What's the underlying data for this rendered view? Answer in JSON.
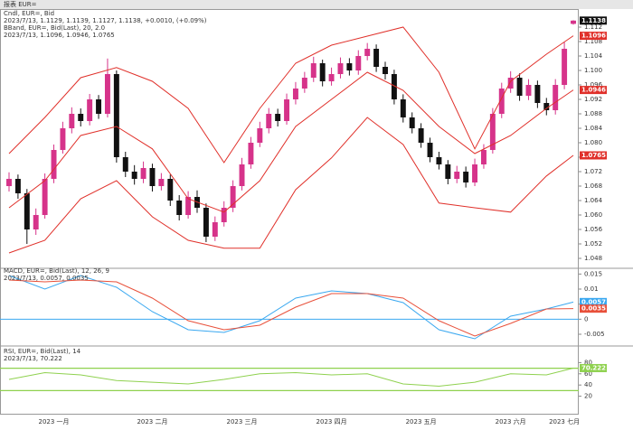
{
  "header": {
    "title": "报表 EUR="
  },
  "chart_data": [
    {
      "type": "candlestick",
      "legend": [
        {
          "text": "Cndl, EUR=, Bid",
          "color": "#222222"
        },
        {
          "text": "2023/7/13, 1.1129, 1.1139, 1.1127, 1.1138, +0.0010, (+0.09%)",
          "color": "#222222"
        },
        {
          "text": "BBand, EUR=, Bid(Last), 20, 2.0",
          "color": "#e0302a"
        },
        {
          "text": "2023/7/13, 1.1096, 1.0946, 1.0765",
          "color": "#e0302a"
        }
      ],
      "up_color": "#d6338a",
      "down_color": "#111111",
      "ohlc": [
        [
          1.068,
          1.0718,
          1.0665,
          1.07
        ],
        [
          1.07,
          1.0712,
          1.0645,
          1.066
        ],
        [
          1.066,
          1.0672,
          1.052,
          1.056
        ],
        [
          1.056,
          1.0618,
          1.0545,
          1.06
        ],
        [
          1.06,
          1.0715,
          1.059,
          1.07
        ],
        [
          1.07,
          1.0795,
          1.0688,
          1.078
        ],
        [
          1.078,
          1.0858,
          1.077,
          1.084
        ],
        [
          1.084,
          1.0898,
          1.0826,
          1.088
        ],
        [
          1.088,
          1.0895,
          1.0845,
          1.086
        ],
        [
          1.086,
          1.0935,
          1.0848,
          1.092
        ],
        [
          1.092,
          1.0932,
          1.0866,
          1.088
        ],
        [
          1.088,
          1.1033,
          1.087,
          1.099
        ],
        [
          1.099,
          1.1,
          1.0745,
          1.076
        ],
        [
          1.076,
          1.0775,
          1.0705,
          1.072
        ],
        [
          1.072,
          1.0738,
          1.0684,
          1.07
        ],
        [
          1.07,
          1.0748,
          1.0688,
          1.073
        ],
        [
          1.073,
          1.0742,
          1.0665,
          1.068
        ],
        [
          1.068,
          1.0716,
          1.0668,
          1.07
        ],
        [
          1.07,
          1.0712,
          1.0625,
          1.064
        ],
        [
          1.064,
          1.0655,
          1.0585,
          1.06
        ],
        [
          1.06,
          1.0666,
          1.059,
          1.065
        ],
        [
          1.065,
          1.0668,
          1.0606,
          1.062
        ],
        [
          1.062,
          1.0632,
          1.0525,
          1.054
        ],
        [
          1.054,
          1.0596,
          1.0528,
          1.058
        ],
        [
          1.058,
          1.0638,
          1.0568,
          1.062
        ],
        [
          1.062,
          1.0696,
          1.0608,
          1.068
        ],
        [
          1.068,
          1.0758,
          1.0668,
          1.074
        ],
        [
          1.074,
          1.0816,
          1.0728,
          1.08
        ],
        [
          1.08,
          1.0858,
          1.0788,
          1.084
        ],
        [
          1.084,
          1.0896,
          1.0826,
          1.088
        ],
        [
          1.088,
          1.0894,
          1.0845,
          1.086
        ],
        [
          1.086,
          1.0936,
          1.085,
          1.092
        ],
        [
          1.092,
          1.0968,
          1.0906,
          1.095
        ],
        [
          1.095,
          1.0996,
          1.0938,
          1.098
        ],
        [
          1.098,
          1.1038,
          1.0968,
          1.102
        ],
        [
          1.102,
          1.103,
          1.0956,
          1.097
        ],
        [
          1.097,
          1.1008,
          1.0958,
          1.099
        ],
        [
          1.099,
          1.1036,
          1.0978,
          1.102
        ],
        [
          1.102,
          1.1034,
          1.0986,
          1.1
        ],
        [
          1.1,
          1.1056,
          1.0988,
          1.104
        ],
        [
          1.104,
          1.1076,
          1.1028,
          1.106
        ],
        [
          1.106,
          1.1072,
          1.0996,
          1.101
        ],
        [
          1.101,
          1.1024,
          1.0975,
          1.099
        ],
        [
          1.099,
          1.1002,
          1.0906,
          1.092
        ],
        [
          1.092,
          1.0934,
          1.0856,
          1.087
        ],
        [
          1.087,
          1.0884,
          1.0826,
          1.084
        ],
        [
          1.084,
          1.0854,
          1.0786,
          1.08
        ],
        [
          1.08,
          1.0814,
          1.0746,
          1.076
        ],
        [
          1.076,
          1.0775,
          1.0726,
          1.074
        ],
        [
          1.074,
          1.0752,
          1.0685,
          1.07
        ],
        [
          1.07,
          1.0736,
          1.0688,
          1.072
        ],
        [
          1.072,
          1.0734,
          1.0676,
          1.069
        ],
        [
          1.069,
          1.0756,
          1.068,
          1.074
        ],
        [
          1.074,
          1.0796,
          1.0728,
          1.078
        ],
        [
          1.078,
          1.0896,
          1.077,
          1.088
        ],
        [
          1.088,
          1.0966,
          1.0868,
          1.095
        ],
        [
          1.095,
          1.0998,
          1.0938,
          1.098
        ],
        [
          1.098,
          1.0992,
          1.0916,
          1.093
        ],
        [
          1.093,
          1.0976,
          1.0918,
          1.096
        ],
        [
          1.096,
          1.0972,
          1.0896,
          1.091
        ],
        [
          1.091,
          1.0924,
          1.0876,
          1.089
        ],
        [
          1.089,
          1.0976,
          1.0878,
          1.096
        ],
        [
          1.096,
          1.1078,
          1.0948,
          1.106
        ],
        [
          1.1129,
          1.1139,
          1.1127,
          1.1138
        ]
      ],
      "categories": [
        null,
        null,
        null,
        null,
        null,
        "2023 一月",
        null,
        null,
        null,
        null,
        null,
        null,
        null,
        null,
        null,
        null,
        "2023 二月",
        null,
        null,
        null,
        null,
        null,
        null,
        null,
        null,
        null,
        "2023 三月",
        null,
        null,
        null,
        null,
        null,
        null,
        null,
        null,
        null,
        "2023 四月",
        null,
        null,
        null,
        null,
        null,
        null,
        null,
        null,
        null,
        "2023 五月",
        null,
        null,
        null,
        null,
        null,
        null,
        null,
        null,
        null,
        "2023 六月",
        null,
        null,
        null,
        null,
        null,
        "2023 七月",
        null
      ],
      "bands": {
        "x": [
          0,
          4,
          8,
          12,
          16,
          20,
          24,
          28,
          32,
          36,
          40,
          44,
          48,
          52,
          56,
          60,
          63
        ],
        "series": [
          {
            "color": "#e0302a",
            "values": [
              1.077,
              1.087,
              1.098,
              1.1008,
              1.097,
              1.0895,
              1.0745,
              1.0895,
              1.102,
              1.107,
              1.1095,
              1.112,
              1.0995,
              1.0783,
              1.097,
              1.1045,
              1.1096
            ]
          },
          {
            "color": "#e0302a",
            "values": [
              1.062,
              1.0695,
              1.082,
              1.0845,
              1.0783,
              1.0645,
              1.0608,
              1.0695,
              1.0845,
              1.092,
              1.0995,
              1.0945,
              1.0845,
              1.077,
              1.082,
              1.0895,
              1.0946
            ]
          },
          {
            "color": "#e0302a",
            "values": [
              1.0495,
              1.053,
              1.0645,
              1.0695,
              1.0595,
              1.053,
              1.0508,
              1.0508,
              1.067,
              1.0758,
              1.087,
              1.0795,
              1.0633,
              1.062,
              1.0608,
              1.0708,
              1.0765
            ]
          }
        ]
      },
      "ylim": [
        1.046,
        1.116
      ],
      "yticks": [
        1.048,
        1.052,
        1.056,
        {
          "value": 1.06,
          "label": "1.060"
        },
        1.064,
        1.068,
        1.072,
        1.076,
        {
          "value": 1.08,
          "label": "1.080"
        },
        1.084,
        1.088,
        1.092,
        1.096,
        {
          "value": 1.1,
          "label": "1.100"
        },
        1.104,
        1.108,
        1.112
      ]
    },
    {
      "type": "line",
      "legend": [
        {
          "text": "MACD, EUR=, Bid(Last), 12, 26, 9",
          "color": "#2a6fd6"
        },
        {
          "text": "2023/7/13, 0.0057, 0.0035",
          "color": "#2a6fd6"
        }
      ],
      "x": [
        0,
        4,
        8,
        12,
        16,
        20,
        24,
        28,
        32,
        36,
        40,
        44,
        48,
        52,
        56,
        60,
        63
      ],
      "series": [
        {
          "color": "#3aa8f0",
          "values": [
            0.0145,
            0.01,
            0.0145,
            0.0106,
            0.0025,
            -0.0035,
            -0.0044,
            -0.0005,
            0.007,
            0.0094,
            0.0085,
            0.0055,
            -0.0035,
            -0.0065,
            0.001,
            0.0034,
            0.0057
          ]
        },
        {
          "color": "#e8503a",
          "values": [
            0.013,
            0.0124,
            0.013,
            0.0124,
            0.007,
            -0.0005,
            -0.0035,
            -0.002,
            0.004,
            0.0085,
            0.0085,
            0.007,
            -0.0005,
            -0.0056,
            -0.0014,
            0.0034,
            0.0035
          ]
        }
      ],
      "baseline": 0,
      "baseline_color": "#3aa8f0",
      "ylim": [
        -0.008,
        0.016
      ],
      "yticks": [
        -0.005,
        0,
        0.005,
        0.01,
        0.015
      ]
    },
    {
      "type": "line",
      "legend": [
        {
          "text": "RSI, EUR=, Bid(Last), 14",
          "color": "#4aa82a"
        },
        {
          "text": "2023/7/13, 70.222",
          "color": "#4aa82a"
        }
      ],
      "x": [
        0,
        4,
        8,
        12,
        16,
        20,
        24,
        28,
        32,
        36,
        40,
        44,
        48,
        52,
        56,
        60,
        63
      ],
      "series": [
        {
          "color": "#8fd14f",
          "values": [
            50,
            62,
            58,
            48,
            45,
            42,
            50,
            60,
            62,
            58,
            60,
            42,
            38,
            45,
            60,
            58,
            70.222
          ]
        }
      ],
      "levels": [
        30,
        70
      ],
      "level_color": "#8fd14f",
      "ylim": [
        0,
        100
      ],
      "yticks": [
        20,
        40,
        60,
        80
      ]
    }
  ]
}
